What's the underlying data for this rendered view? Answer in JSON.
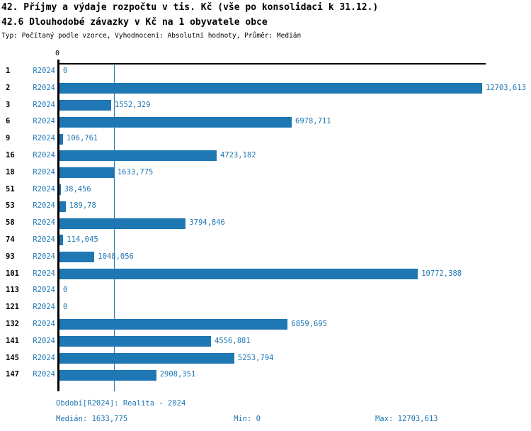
{
  "header": {
    "title_line1": "42. Příjmy a výdaje rozpočtu v tis. Kč (vše po konsolidaci k 31.12.)",
    "title_line2": "42.6 Dlouhodobé závazky v Kč na 1 obyvatele obce",
    "subtitle": "Typ: Počítaný podle vzorce, Vyhodnocení: Absolutní hodnoty, Průměr: Medián"
  },
  "chart_data": {
    "type": "bar",
    "orientation": "horizontal",
    "title": "42.6 Dlouhodobé závazky v Kč na 1 obyvatele obce",
    "xlabel": "",
    "ylabel": "",
    "xlim": [
      0,
      12703.613
    ],
    "grid": false,
    "legend_position": "none",
    "zero_tick_label": "0",
    "median_value": 1633.775,
    "categories": [
      "1",
      "2",
      "3",
      "6",
      "9",
      "16",
      "18",
      "51",
      "53",
      "58",
      "74",
      "93",
      "101",
      "113",
      "121",
      "132",
      "141",
      "145",
      "147"
    ],
    "series": [
      {
        "name": "R2024",
        "values": [
          0,
          12703.613,
          1552.329,
          6978.711,
          106.761,
          4723.182,
          1633.775,
          38.456,
          189.78,
          3794.846,
          114.045,
          1048.056,
          10772.388,
          0,
          0,
          6859.695,
          4556.881,
          5253.794,
          2908.351
        ],
        "value_labels": [
          "0",
          "12703,613",
          "1552,329",
          "6978,711",
          "106,761",
          "4723,182",
          "1633,775",
          "38,456",
          "189,78",
          "3794,846",
          "114,045",
          "1048,056",
          "10772,388",
          "0",
          "0",
          "6859,695",
          "4556,881",
          "5253,794",
          "2908,351"
        ]
      }
    ]
  },
  "footer": {
    "period": "Období[R2024]: Realita - 2024",
    "median": "Medián: 1633,775",
    "min": "Min: 0",
    "max": "Max: 12703,613"
  },
  "colors": {
    "bar": "#1f77b4",
    "blue_text": "#1f77b4",
    "median_line": "#1f77b4",
    "axis": "#000000"
  }
}
